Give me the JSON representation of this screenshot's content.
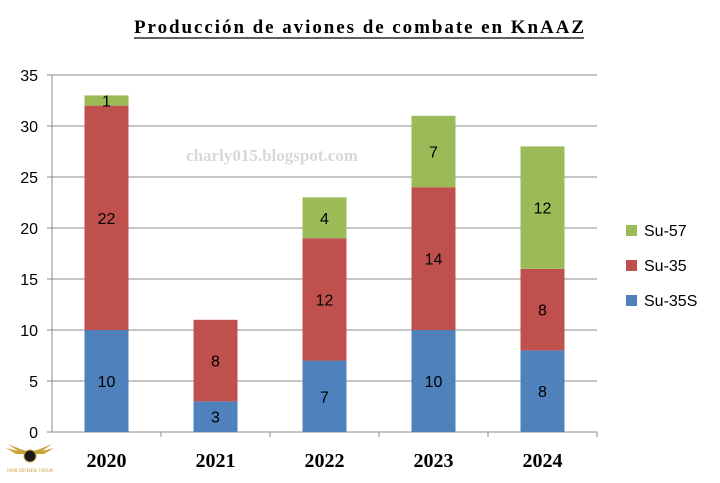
{
  "chart_data": {
    "type": "bar",
    "stacked": true,
    "title": "Producción de aviones de combate en KnAAZ",
    "categories": [
      "2020",
      "2021",
      "2022",
      "2023",
      "2024"
    ],
    "series": [
      {
        "name": "Su-35S",
        "values": [
          10,
          3,
          7,
          10,
          8
        ],
        "color": "#4f81bd"
      },
      {
        "name": "Su-35",
        "values": [
          22,
          8,
          12,
          14,
          8
        ],
        "color": "#c0504d"
      },
      {
        "name": "Su-57",
        "values": [
          1,
          0,
          4,
          7,
          12
        ],
        "color": "#9bbb59"
      }
    ],
    "ylim": [
      0,
      35
    ],
    "yticks": [
      "0",
      "5",
      "10",
      "15",
      "20",
      "25",
      "30",
      "35"
    ],
    "grid": true,
    "legend_position": "right",
    "legend_order": [
      "Su-57",
      "Su-35",
      "Su-35S"
    ],
    "annotations": {
      "watermark": "charly015.blogspot.com"
    }
  },
  "logo": {
    "name": "DA",
    "text": "ARAB DEFENSE FORUM"
  }
}
